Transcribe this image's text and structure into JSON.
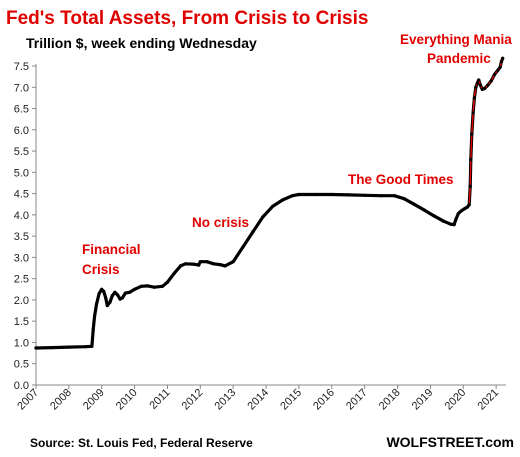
{
  "chart_data": {
    "type": "line",
    "title": "Fed's Total Assets, From Crisis to Crisis",
    "subtitle": "Trillion $, week ending Wednesday",
    "xlabel": "",
    "ylabel": "",
    "xlim": [
      2007,
      2021.3
    ],
    "ylim": [
      0,
      7.5
    ],
    "grid": false,
    "x_ticks": [
      "2007",
      "2008",
      "2009",
      "2010",
      "2011",
      "2012",
      "2013",
      "2014",
      "2015",
      "2016",
      "2017",
      "2018",
      "2019",
      "2020",
      "2021"
    ],
    "y_ticks": [
      "0.0",
      "0.5",
      "1.0",
      "1.5",
      "2.0",
      "2.5",
      "3.0",
      "3.5",
      "4.0",
      "4.5",
      "5.0",
      "5.5",
      "6.0",
      "6.5",
      "7.0",
      "7.5"
    ],
    "series": [
      {
        "points": [
          [
            2007.0,
            0.87
          ],
          [
            2007.5,
            0.88
          ],
          [
            2008.0,
            0.89
          ],
          [
            2008.5,
            0.9
          ],
          [
            2008.7,
            0.91
          ],
          [
            2008.74,
            1.3
          ],
          [
            2008.78,
            1.6
          ],
          [
            2008.84,
            1.9
          ],
          [
            2008.92,
            2.15
          ],
          [
            2009.0,
            2.25
          ],
          [
            2009.06,
            2.2
          ],
          [
            2009.12,
            2.05
          ],
          [
            2009.17,
            1.87
          ],
          [
            2009.25,
            1.95
          ],
          [
            2009.32,
            2.1
          ],
          [
            2009.4,
            2.18
          ],
          [
            2009.48,
            2.12
          ],
          [
            2009.56,
            2.02
          ],
          [
            2009.63,
            2.05
          ],
          [
            2009.72,
            2.16
          ],
          [
            2009.85,
            2.18
          ],
          [
            2010.0,
            2.25
          ],
          [
            2010.2,
            2.32
          ],
          [
            2010.4,
            2.33
          ],
          [
            2010.6,
            2.3
          ],
          [
            2010.85,
            2.32
          ],
          [
            2011.0,
            2.42
          ],
          [
            2011.2,
            2.62
          ],
          [
            2011.4,
            2.8
          ],
          [
            2011.55,
            2.85
          ],
          [
            2011.8,
            2.84
          ],
          [
            2011.95,
            2.82
          ],
          [
            2012.0,
            2.9
          ],
          [
            2012.2,
            2.9
          ],
          [
            2012.4,
            2.85
          ],
          [
            2012.6,
            2.83
          ],
          [
            2012.75,
            2.8
          ],
          [
            2013.0,
            2.9
          ],
          [
            2013.3,
            3.25
          ],
          [
            2013.6,
            3.6
          ],
          [
            2013.9,
            3.95
          ],
          [
            2014.2,
            4.2
          ],
          [
            2014.5,
            4.35
          ],
          [
            2014.8,
            4.45
          ],
          [
            2015.0,
            4.48
          ],
          [
            2015.5,
            4.48
          ],
          [
            2016.0,
            4.48
          ],
          [
            2016.5,
            4.47
          ],
          [
            2017.0,
            4.46
          ],
          [
            2017.5,
            4.45
          ],
          [
            2017.9,
            4.45
          ],
          [
            2018.2,
            4.38
          ],
          [
            2018.5,
            4.25
          ],
          [
            2018.8,
            4.12
          ],
          [
            2019.1,
            3.98
          ],
          [
            2019.4,
            3.85
          ],
          [
            2019.62,
            3.78
          ],
          [
            2019.72,
            3.77
          ],
          [
            2019.78,
            3.9
          ],
          [
            2019.85,
            4.03
          ],
          [
            2019.95,
            4.1
          ],
          [
            2020.05,
            4.15
          ],
          [
            2020.12,
            4.18
          ],
          [
            2020.18,
            4.24
          ],
          [
            2020.21,
            4.67
          ],
          [
            2020.23,
            5.3
          ],
          [
            2020.26,
            5.9
          ],
          [
            2020.3,
            6.4
          ],
          [
            2020.34,
            6.75
          ],
          [
            2020.38,
            7.0
          ],
          [
            2020.43,
            7.1
          ],
          [
            2020.47,
            7.17
          ],
          [
            2020.52,
            7.05
          ],
          [
            2020.58,
            6.95
          ],
          [
            2020.65,
            6.97
          ],
          [
            2020.75,
            7.05
          ],
          [
            2020.85,
            7.15
          ],
          [
            2020.95,
            7.3
          ],
          [
            2021.05,
            7.4
          ],
          [
            2021.12,
            7.47
          ],
          [
            2021.16,
            7.6
          ],
          [
            2021.2,
            7.68
          ]
        ]
      }
    ],
    "annotations": {
      "crisis1_line1": "Financial",
      "crisis1_line2": "Crisis",
      "no_crisis": "No crisis",
      "good_times": "The Good Times",
      "mania_line1": "Everything Mania",
      "mania_line2": "Pandemic"
    },
    "source": "Source: St. Louis Fed, Federal Reserve",
    "brand": "WOLFSTREET.com",
    "colors": {
      "line": "#000000",
      "highlight": "#e00000",
      "annotation": "#e00000",
      "text": "#000000"
    }
  }
}
